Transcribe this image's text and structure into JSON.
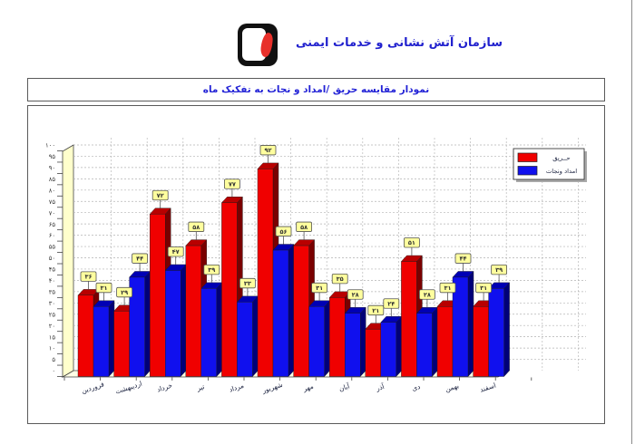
{
  "header": {
    "org_name": "سازمان آتش نشانی و خدمات ایمنی"
  },
  "title_bar": {
    "title": "نمودار مقایسه حریق /امداد و نجات به تفکیک ماه"
  },
  "chart_data": {
    "type": "bar",
    "style": "3d-column-pairs",
    "title": "نمودار مقایسه حریق /امداد و نجات به تفکیک ماه",
    "categories": [
      "فروردین",
      "اردیبهشت",
      "خرداد",
      "تیر",
      "مرداد",
      "شهریور",
      "مهر",
      "آبان",
      "آذر",
      "دی",
      "بهمن",
      "اسفند"
    ],
    "series": [
      {
        "name": "حــريق",
        "color": "#f00000",
        "top_color": "#b80000",
        "side_color": "#7a0000",
        "values": [
          36,
          29,
          72,
          58,
          77,
          92,
          58,
          35,
          21,
          51,
          31,
          31
        ]
      },
      {
        "name": "امداد ونجات",
        "color": "#1010ee",
        "top_color": "#0000b4",
        "side_color": "#000078",
        "values": [
          31,
          44,
          47,
          39,
          33,
          56,
          31,
          28,
          24,
          28,
          44,
          39
        ]
      }
    ],
    "ylim": [
      0,
      100
    ],
    "ytick_step": 5,
    "grid": "dashed",
    "legend_position": "top-right",
    "number_locale": "fa",
    "wall_color": "#ffffcc",
    "floor_color": "#ffffe6",
    "value_label_bg": "#ffff9e"
  }
}
